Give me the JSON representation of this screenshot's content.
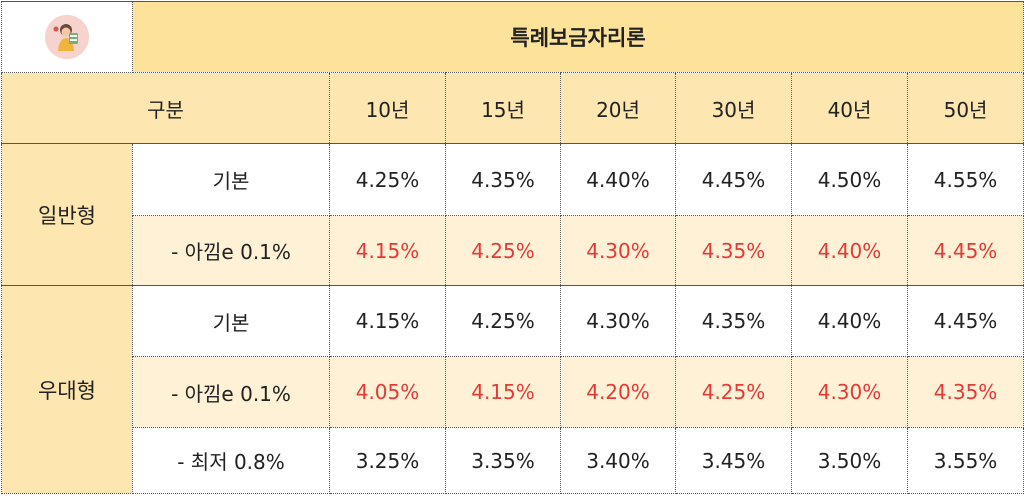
{
  "title": "특례보금자리론",
  "header": {
    "category_label": "구분",
    "terms": [
      "10년",
      "15년",
      "20년",
      "30년",
      "40년",
      "50년"
    ]
  },
  "groups": [
    {
      "name": "일반형",
      "rows": [
        {
          "label": "기본",
          "values": [
            "4.25%",
            "4.35%",
            "4.40%",
            "4.45%",
            "4.50%",
            "4.55%"
          ]
        },
        {
          "label": "- 아낌e 0.1%",
          "values": [
            "4.15%",
            "4.25%",
            "4.30%",
            "4.35%",
            "4.40%",
            "4.45%"
          ]
        }
      ]
    },
    {
      "name": "우대형",
      "rows": [
        {
          "label": "기본",
          "values": [
            "4.15%",
            "4.25%",
            "4.30%",
            "4.35%",
            "4.40%",
            "4.45%"
          ]
        },
        {
          "label": "- 아낌e 0.1%",
          "values": [
            "4.05%",
            "4.15%",
            "4.20%",
            "4.25%",
            "4.30%",
            "4.35%"
          ]
        },
        {
          "label": "- 최저 0.8%",
          "values": [
            "3.25%",
            "3.35%",
            "3.40%",
            "3.45%",
            "3.50%",
            "3.55%"
          ]
        }
      ]
    }
  ],
  "colors": {
    "header_bg": "#fde39a",
    "label_bg": "#fde6b0",
    "highlight_row_bg": "#fef1d6",
    "discount_text": "#e53935"
  }
}
